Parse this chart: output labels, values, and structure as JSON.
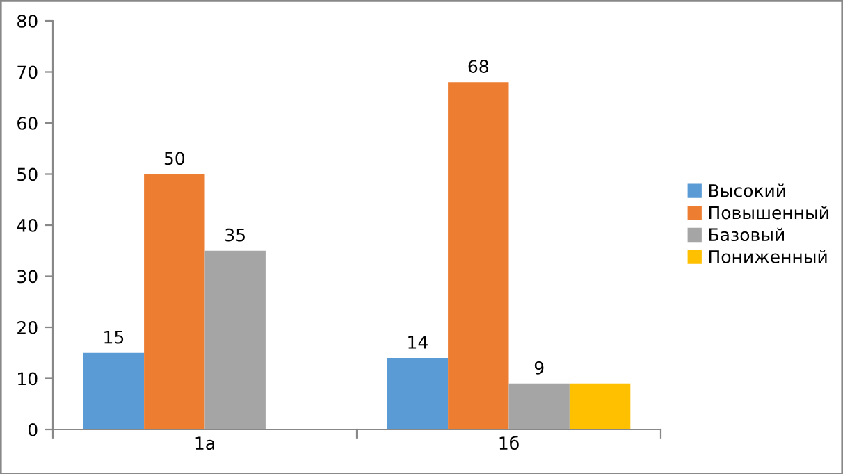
{
  "chart_data": {
    "type": "bar",
    "categories": [
      "1а",
      "1б"
    ],
    "series": [
      {
        "name": "Высокий",
        "color": "#5b9bd5",
        "values": [
          15,
          14
        ],
        "value_labels": [
          "15",
          "14"
        ]
      },
      {
        "name": "Повышенный",
        "color": "#ed7d31",
        "values": [
          50,
          68
        ],
        "value_labels": [
          "50",
          "68"
        ]
      },
      {
        "name": "Базовый",
        "color": "#a5a5a5",
        "values": [
          35,
          9
        ],
        "value_labels": [
          "35",
          "9"
        ]
      },
      {
        "name": "Пониженный",
        "color": "#ffc000",
        "values": [
          null,
          9
        ],
        "value_labels": [
          null,
          null
        ]
      }
    ],
    "ylim": [
      0,
      80
    ],
    "yticks": [
      0,
      10,
      20,
      30,
      40,
      50,
      60,
      70,
      80
    ],
    "grid": false,
    "legend": "right"
  }
}
